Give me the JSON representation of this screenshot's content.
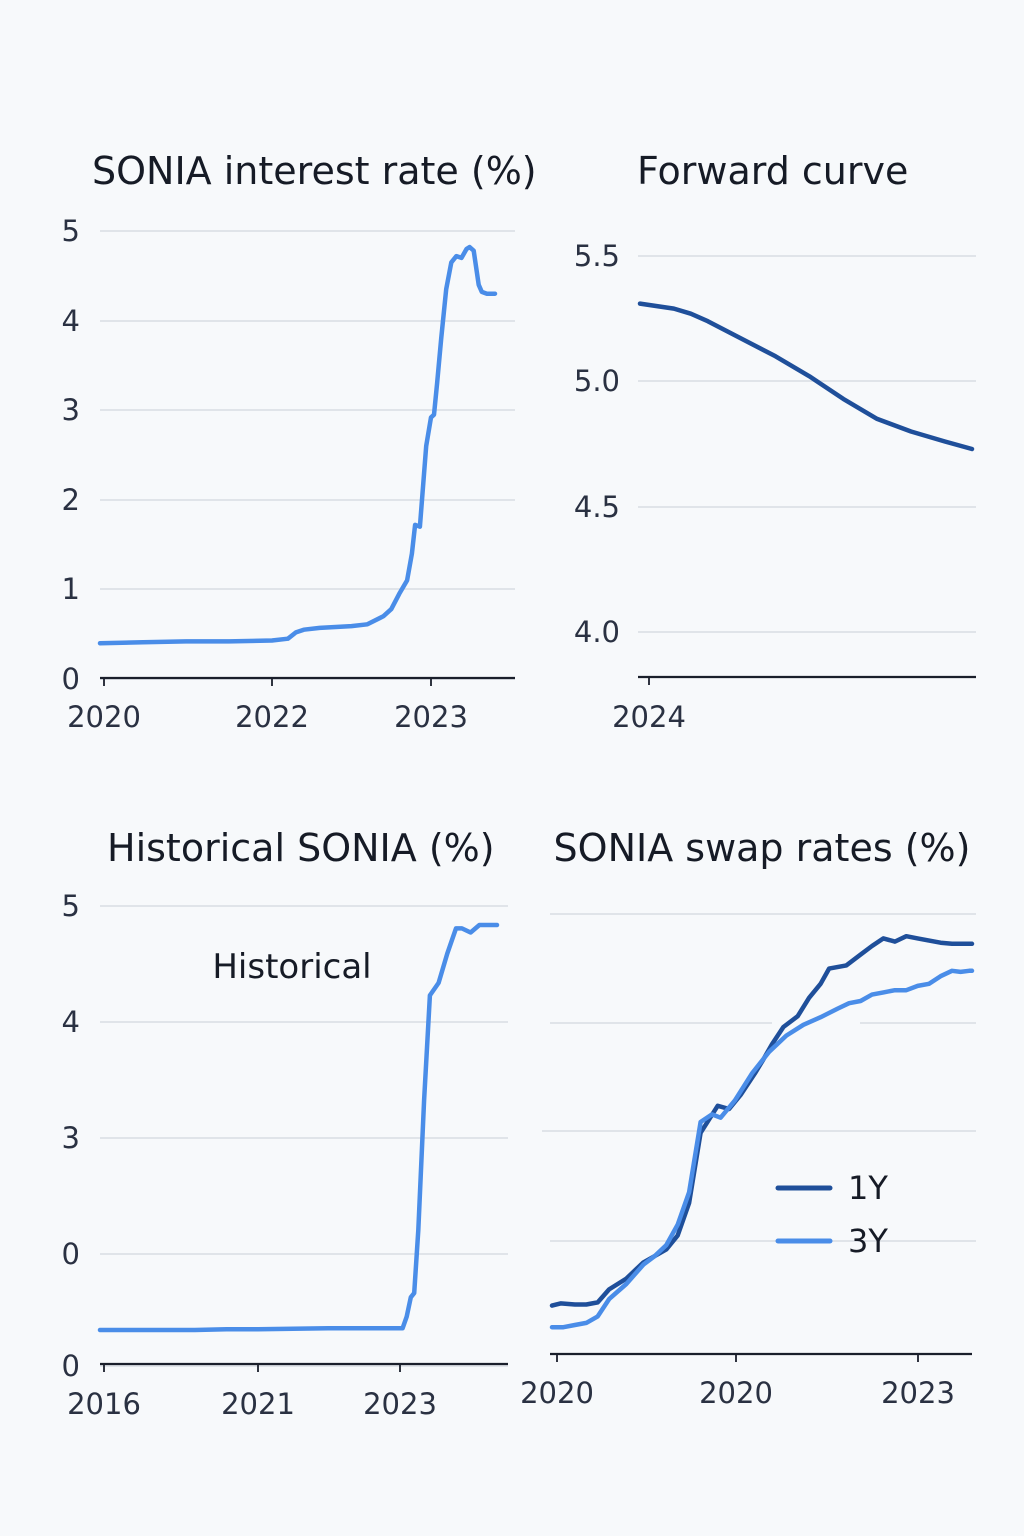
{
  "colors": {
    "dark_blue": "#1f4f9a",
    "light_blue": "#4a8de8",
    "grid": "#d9dde3",
    "axis": "#1a1f2b"
  },
  "chart_data": [
    {
      "type": "line",
      "title": "SONIA interest rate (%)",
      "xlabel": "",
      "ylabel": "",
      "x_ticks": [
        "2020",
        "2022",
        "2023"
      ],
      "y_ticks": [
        "0",
        "1",
        "2",
        "3",
        "4",
        "5"
      ],
      "ylim": [
        0,
        5
      ],
      "grid": true,
      "series": [
        {
          "name": "",
          "color": "#4a8de8",
          "x": [
            2020.0,
            2020.5,
            2021.0,
            2021.5,
            2022.0,
            2022.1,
            2022.15,
            2022.2,
            2022.3,
            2022.5,
            2022.6,
            2022.7,
            2022.75,
            2022.8,
            2022.85,
            2022.88,
            2022.9,
            2022.93,
            2022.97,
            2023.0,
            2023.03,
            2023.06,
            2023.1,
            2023.15,
            2023.2,
            2023.25,
            2023.3,
            2023.35,
            2023.38,
            2023.42,
            2023.47,
            2023.5,
            2023.55,
            2023.6,
            2023.63
          ],
          "values": [
            0.4,
            0.41,
            0.42,
            0.42,
            0.43,
            0.45,
            0.52,
            0.55,
            0.57,
            0.59,
            0.61,
            0.7,
            0.78,
            0.95,
            1.1,
            1.4,
            1.72,
            1.7,
            2.6,
            2.92,
            2.95,
            3.3,
            3.8,
            4.35,
            4.65,
            4.72,
            4.7,
            4.8,
            4.82,
            4.78,
            4.4,
            4.32,
            4.3,
            4.3,
            4.3
          ]
        }
      ]
    },
    {
      "type": "line",
      "title": "Forward curve",
      "xlabel": "",
      "ylabel": "",
      "x_ticks": [
        "2024"
      ],
      "y_ticks": [
        "4.0",
        "4.5",
        "5.0",
        "5.5"
      ],
      "ylim": [
        3.82,
        5.6
      ],
      "grid": true,
      "series": [
        {
          "name": "",
          "color": "#1f4f9a",
          "x": [
            2024.0,
            2024.25,
            2024.5,
            2024.75,
            2025.0,
            2025.5,
            2026.0,
            2026.5,
            2027.0,
            2027.5,
            2028.0,
            2028.5,
            2028.9
          ],
          "values": [
            5.31,
            5.3,
            5.29,
            5.27,
            5.24,
            5.17,
            5.1,
            5.02,
            4.93,
            4.85,
            4.8,
            4.76,
            4.73
          ]
        }
      ]
    },
    {
      "type": "line",
      "title": "Historical SONIA (%)",
      "annotation": "Historical",
      "xlabel": "",
      "ylabel": "",
      "x_ticks": [
        "2016",
        "2021",
        "2023"
      ],
      "y_ticks": [
        "0",
        "0",
        "3",
        "4",
        "5"
      ],
      "grid": true,
      "series": [
        {
          "name": "",
          "color": "#4a8de8",
          "x": [
            2016.0,
            2017.0,
            2018.0,
            2019.0,
            2020.0,
            2021.0,
            2022.0,
            2022.5,
            2023.0,
            2023.08,
            2023.15,
            2023.22,
            2023.28,
            2023.35,
            2023.45,
            2023.55,
            2023.7,
            2023.85,
            2024.0,
            2024.1,
            2024.25,
            2024.4,
            2024.55,
            2024.7
          ],
          "values": [
            0.56,
            0.56,
            0.56,
            0.56,
            0.57,
            0.57,
            0.58,
            0.58,
            0.58,
            0.58,
            0.72,
            0.95,
            1.0,
            1.75,
            3.3,
            4.55,
            4.7,
            5.05,
            5.35,
            5.35,
            5.3,
            5.39,
            5.39,
            5.39
          ]
        }
      ]
    },
    {
      "type": "line",
      "title": "SONIA swap rates (%)",
      "xlabel": "",
      "ylabel": "",
      "x_ticks": [
        "2020",
        "2020",
        "2023"
      ],
      "y_ticks": [],
      "grid": true,
      "legend": "right",
      "series": [
        {
          "name": "1Y",
          "color": "#1f4f9a",
          "x": [
            2020.0,
            2020.15,
            2020.4,
            2020.6,
            2020.8,
            2021.0,
            2021.3,
            2021.6,
            2021.8,
            2022.0,
            2022.2,
            2022.4,
            2022.6,
            2022.9,
            2023.1,
            2023.3,
            2023.55,
            2023.7,
            2023.85,
            2024.05,
            2024.3,
            2024.5,
            2024.7,
            2024.85,
            2025.15,
            2025.4,
            2025.6,
            2025.8,
            2026.0,
            2026.2,
            2026.4,
            2026.6,
            2026.8,
            2027.0,
            2027.2,
            2027.35
          ],
          "values": [
            0.3,
            0.32,
            0.31,
            0.31,
            0.33,
            0.45,
            0.55,
            0.7,
            0.76,
            0.82,
            0.95,
            1.25,
            1.9,
            2.15,
            2.12,
            2.25,
            2.45,
            2.58,
            2.72,
            2.88,
            2.98,
            3.15,
            3.28,
            3.42,
            3.45,
            3.55,
            3.63,
            3.7,
            3.67,
            3.72,
            3.7,
            3.68,
            3.66,
            3.65,
            3.65,
            3.65
          ]
        },
        {
          "name": "3Y",
          "color": "#4a8de8",
          "x": [
            2020.0,
            2020.2,
            2020.4,
            2020.6,
            2020.8,
            2021.0,
            2021.3,
            2021.6,
            2021.8,
            2022.0,
            2022.2,
            2022.4,
            2022.6,
            2022.8,
            2022.95,
            2023.2,
            2023.5,
            2023.8,
            2024.1,
            2024.4,
            2024.7,
            2025.0,
            2025.2,
            2025.4,
            2025.6,
            2025.8,
            2026.0,
            2026.2,
            2026.4,
            2026.6,
            2026.8,
            2027.0,
            2027.15,
            2027.3,
            2027.35
          ],
          "values": [
            0.1,
            0.1,
            0.12,
            0.14,
            0.2,
            0.36,
            0.5,
            0.68,
            0.76,
            0.86,
            1.05,
            1.35,
            2.0,
            2.07,
            2.04,
            2.2,
            2.45,
            2.65,
            2.8,
            2.9,
            2.97,
            3.05,
            3.1,
            3.12,
            3.18,
            3.2,
            3.22,
            3.22,
            3.26,
            3.28,
            3.35,
            3.4,
            3.39,
            3.4,
            3.4
          ]
        }
      ]
    }
  ]
}
